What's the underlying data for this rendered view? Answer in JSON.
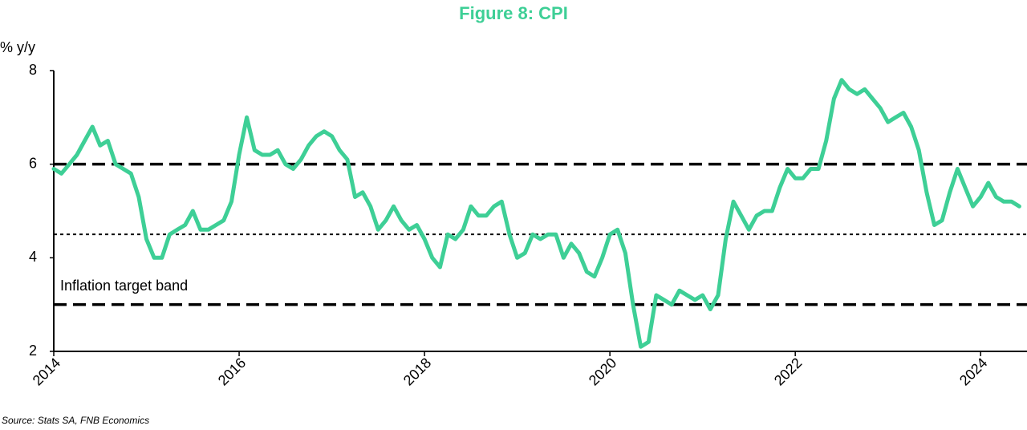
{
  "chart_data": {
    "type": "line",
    "title": "Figure 8: CPI",
    "y_label": "% y/y",
    "source": "Source: Stats SA, FNB Economics",
    "annotation": "Inflation target band",
    "x": [
      2014.0,
      2014.083,
      2014.167,
      2014.25,
      2014.333,
      2014.417,
      2014.5,
      2014.583,
      2014.667,
      2014.75,
      2014.833,
      2014.917,
      2015.0,
      2015.083,
      2015.167,
      2015.25,
      2015.333,
      2015.417,
      2015.5,
      2015.583,
      2015.667,
      2015.75,
      2015.833,
      2015.917,
      2016.0,
      2016.083,
      2016.167,
      2016.25,
      2016.333,
      2016.417,
      2016.5,
      2016.583,
      2016.667,
      2016.75,
      2016.833,
      2016.917,
      2017.0,
      2017.083,
      2017.167,
      2017.25,
      2017.333,
      2017.417,
      2017.5,
      2017.583,
      2017.667,
      2017.75,
      2017.833,
      2017.917,
      2018.0,
      2018.083,
      2018.167,
      2018.25,
      2018.333,
      2018.417,
      2018.5,
      2018.583,
      2018.667,
      2018.75,
      2018.833,
      2018.917,
      2019.0,
      2019.083,
      2019.167,
      2019.25,
      2019.333,
      2019.417,
      2019.5,
      2019.583,
      2019.667,
      2019.75,
      2019.833,
      2019.917,
      2020.0,
      2020.083,
      2020.167,
      2020.25,
      2020.333,
      2020.417,
      2020.5,
      2020.583,
      2020.667,
      2020.75,
      2020.833,
      2020.917,
      2021.0,
      2021.083,
      2021.167,
      2021.25,
      2021.333,
      2021.417,
      2021.5,
      2021.583,
      2021.667,
      2021.75,
      2021.833,
      2021.917,
      2022.0,
      2022.083,
      2022.167,
      2022.25,
      2022.333,
      2022.417,
      2022.5,
      2022.583,
      2022.667,
      2022.75,
      2022.833,
      2022.917,
      2023.0,
      2023.083,
      2023.167,
      2023.25,
      2023.333,
      2023.417,
      2023.5,
      2023.583,
      2023.667,
      2023.75,
      2023.833,
      2023.917,
      2024.0,
      2024.083,
      2024.167,
      2024.25,
      2024.333,
      2024.417
    ],
    "series": [
      {
        "color": "#3ecf96",
        "values": [
          5.9,
          5.8,
          6.0,
          6.2,
          6.5,
          6.8,
          6.4,
          6.5,
          6.0,
          5.9,
          5.8,
          5.3,
          4.4,
          4.0,
          4.0,
          4.5,
          4.6,
          4.7,
          5.0,
          4.6,
          4.6,
          4.7,
          4.8,
          5.2,
          6.2,
          7.0,
          6.3,
          6.2,
          6.2,
          6.3,
          6.0,
          5.9,
          6.1,
          6.4,
          6.6,
          6.7,
          6.6,
          6.3,
          6.1,
          5.3,
          5.4,
          5.1,
          4.6,
          4.8,
          5.1,
          4.8,
          4.6,
          4.7,
          4.4,
          4.0,
          3.8,
          4.5,
          4.4,
          4.6,
          5.1,
          4.9,
          4.9,
          5.1,
          5.2,
          4.5,
          4.0,
          4.1,
          4.5,
          4.4,
          4.5,
          4.5,
          4.0,
          4.3,
          4.1,
          3.7,
          3.6,
          4.0,
          4.5,
          4.6,
          4.1,
          3.0,
          2.1,
          2.2,
          3.2,
          3.1,
          3.0,
          3.3,
          3.2,
          3.1,
          3.2,
          2.9,
          3.2,
          4.4,
          5.2,
          4.9,
          4.6,
          4.9,
          5.0,
          5.0,
          5.5,
          5.9,
          5.7,
          5.7,
          5.9,
          5.9,
          6.5,
          7.4,
          7.8,
          7.6,
          7.5,
          7.6,
          7.4,
          7.2,
          6.9,
          7.0,
          7.1,
          6.8,
          6.3,
          5.4,
          4.7,
          4.8,
          5.4,
          5.9,
          5.5,
          5.1,
          5.3,
          5.6,
          5.3,
          5.2,
          5.2,
          5.1
        ]
      }
    ],
    "reference_lines": [
      {
        "value": 6,
        "style": "dashed"
      },
      {
        "value": 4.5,
        "style": "dotted"
      },
      {
        "value": 3,
        "style": "dashed"
      }
    ],
    "xlim": [
      2014,
      2024.5
    ],
    "xticks": [
      2014,
      2016,
      2018,
      2020,
      2022,
      2024
    ],
    "ylim": [
      2,
      8
    ],
    "yticks": [
      2,
      4,
      6,
      8
    ]
  }
}
